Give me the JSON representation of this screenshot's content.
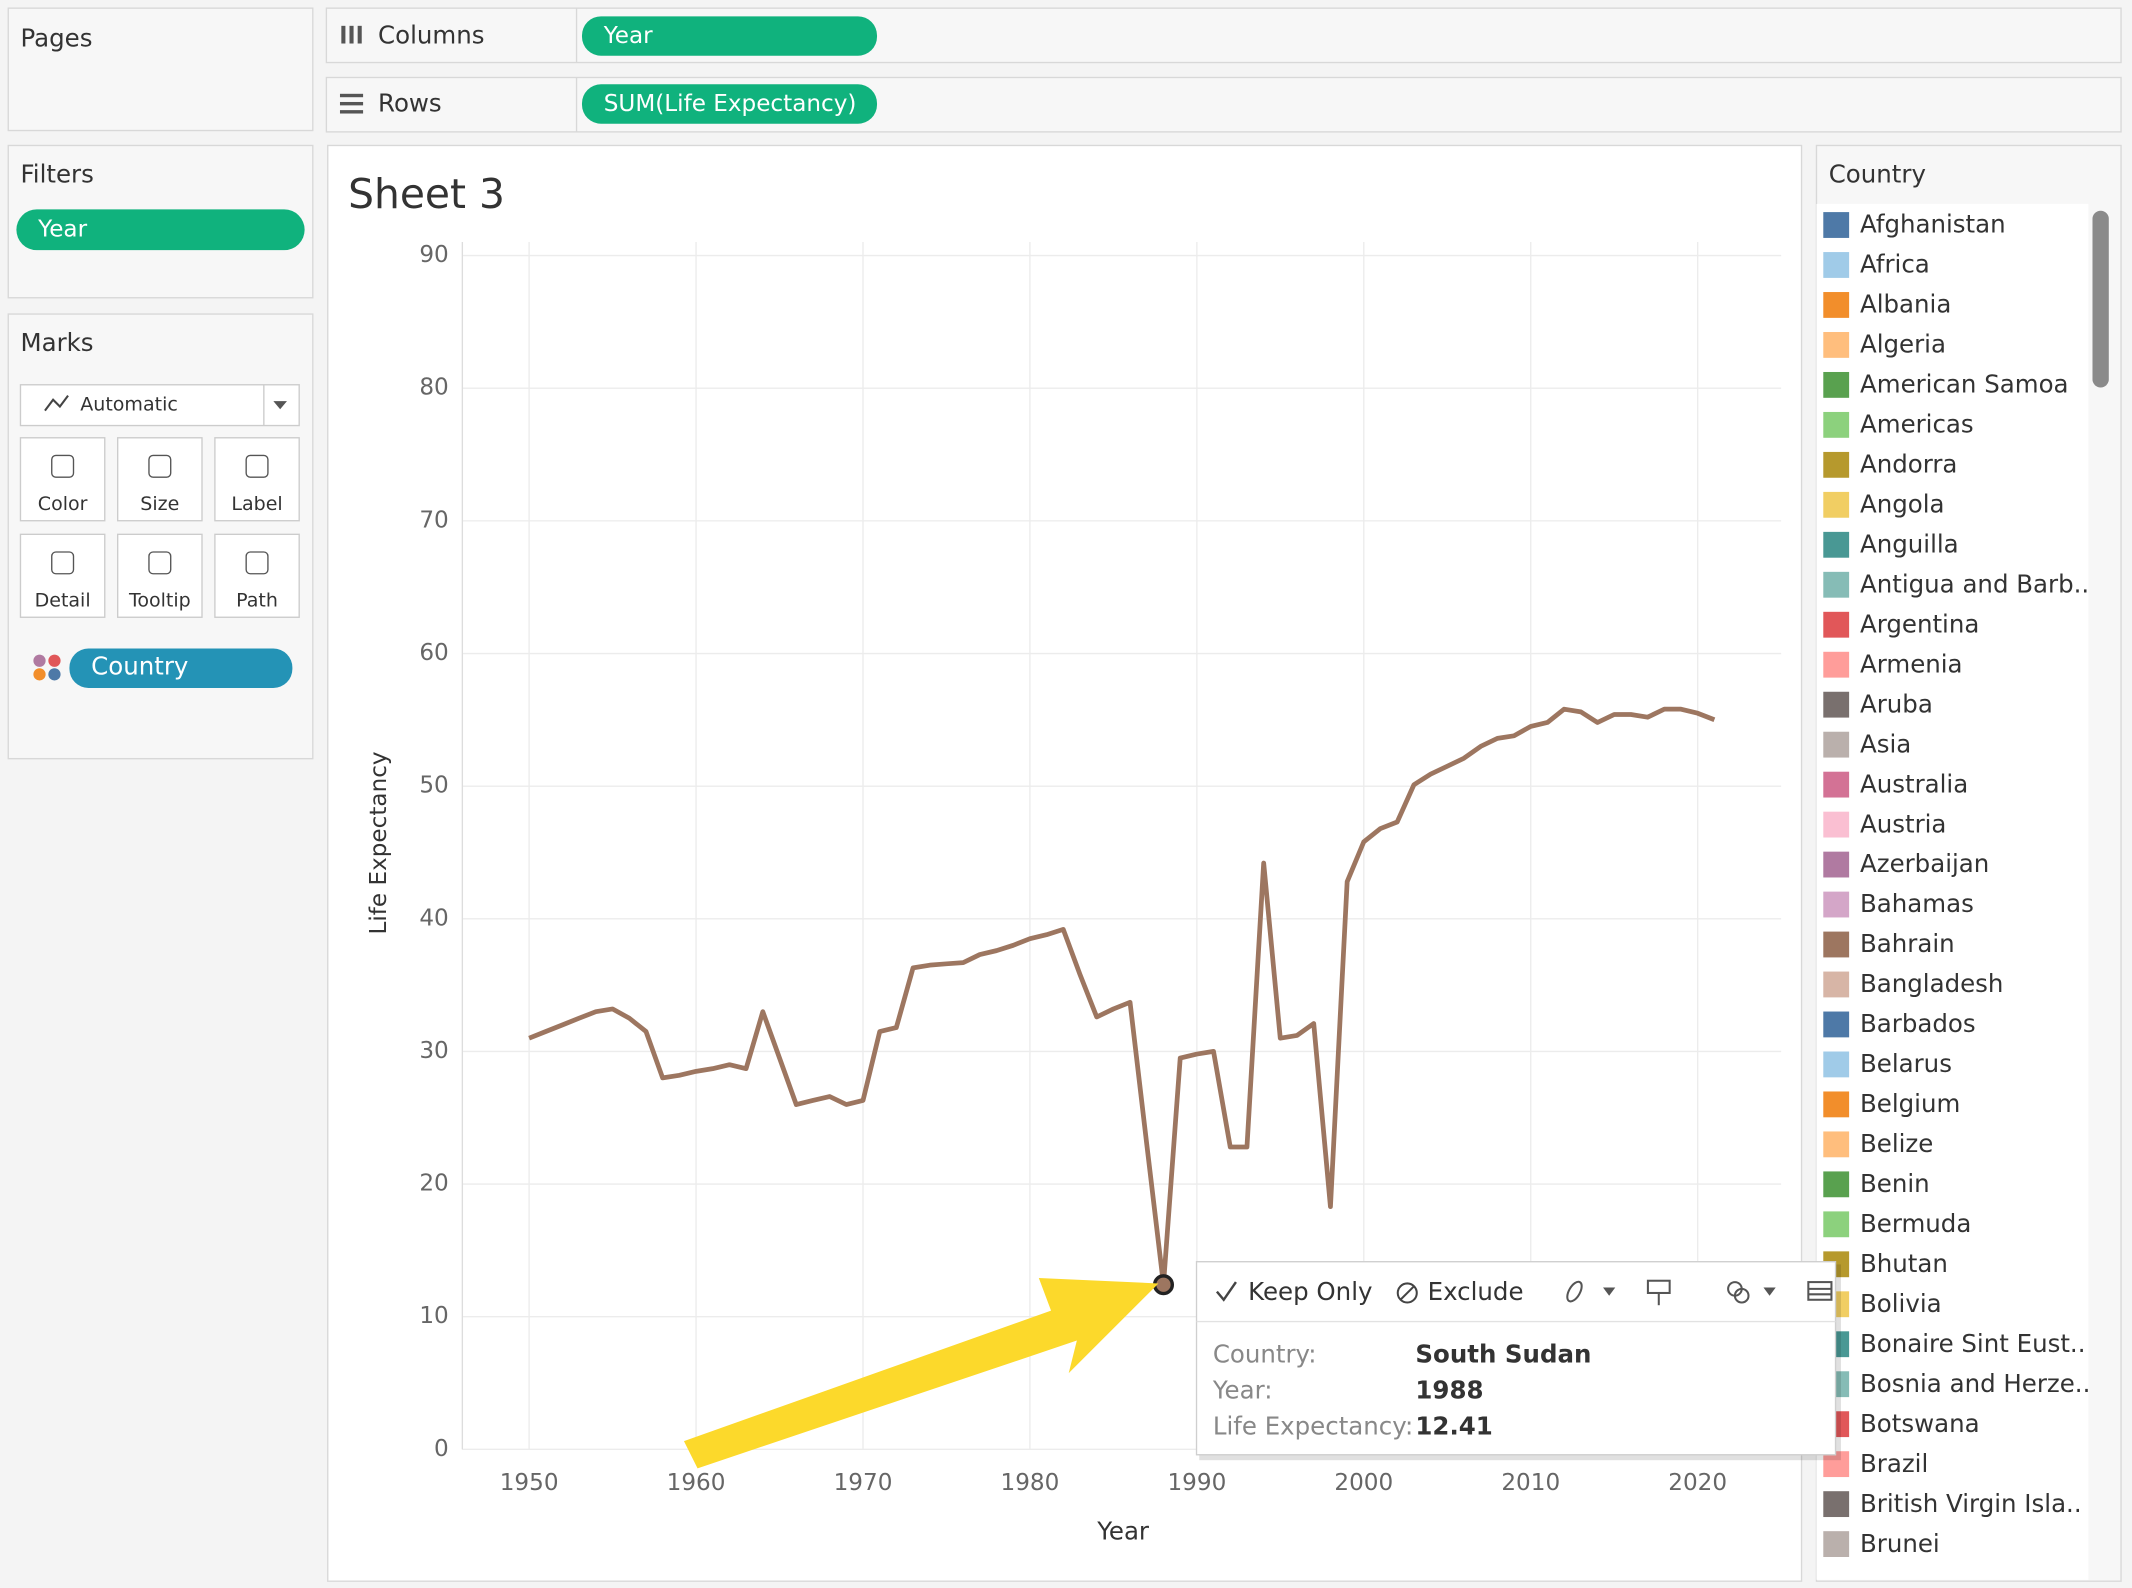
{
  "shelves": {
    "pages": "Pages",
    "columns": "Columns",
    "columns_pill": "Year",
    "rows": "Rows",
    "rows_pill": "SUM(Life Expectancy)",
    "filters": "Filters",
    "filters_pill": "Year"
  },
  "marks": {
    "title": "Marks",
    "mark_type": "Automatic",
    "buttons": [
      "Color",
      "Size",
      "Label",
      "Detail",
      "Tooltip",
      "Path"
    ],
    "color_pill": "Country"
  },
  "chart_data": {
    "type": "line",
    "title": "Sheet 3",
    "x_label": "Year",
    "y_label": "Life Expectancy",
    "xlim": [
      1946,
      2025
    ],
    "xticks": [
      1950,
      1960,
      1970,
      1980,
      1990,
      2000,
      2010,
      2020
    ],
    "ylim": [
      0,
      90
    ],
    "yticks": [
      0,
      10,
      20,
      30,
      40,
      50,
      60,
      70,
      80,
      90
    ],
    "grid": true,
    "x": [
      1950,
      1951,
      1952,
      1953,
      1954,
      1955,
      1956,
      1957,
      1958,
      1959,
      1960,
      1961,
      1962,
      1963,
      1964,
      1965,
      1966,
      1967,
      1968,
      1969,
      1970,
      1971,
      1972,
      1973,
      1974,
      1975,
      1976,
      1977,
      1978,
      1979,
      1980,
      1981,
      1982,
      1983,
      1984,
      1985,
      1986,
      1987,
      1988,
      1989,
      1990,
      1991,
      1992,
      1993,
      1994,
      1995,
      1996,
      1997,
      1998,
      1999,
      2000,
      2001,
      2002,
      2003,
      2004,
      2005,
      2006,
      2007,
      2008,
      2009,
      2010,
      2011,
      2012,
      2013,
      2014,
      2015,
      2016,
      2017,
      2018,
      2019,
      2020,
      2021
    ],
    "series": [
      {
        "name": "South Sudan",
        "color": "#9d7660",
        "values": [
          31,
          31.5,
          32,
          32.5,
          33,
          33.2,
          32.5,
          31.5,
          28,
          28.2,
          28.5,
          28.7,
          29,
          28.7,
          33,
          29.5,
          26,
          26.3,
          26.6,
          26,
          26.3,
          31.5,
          31.8,
          36.3,
          36.5,
          36.6,
          36.7,
          37.3,
          37.6,
          38,
          38.5,
          38.8,
          39.2,
          35.8,
          32.6,
          33.2,
          33.7,
          23,
          12.41,
          29.5,
          29.8,
          30,
          22.8,
          22.8,
          44.2,
          31,
          31.2,
          32.1,
          18.3,
          42.8,
          45.8,
          46.8,
          47.3,
          50.1,
          50.9,
          51.5,
          52.1,
          53,
          53.6,
          53.8,
          54.5,
          54.8,
          55.8,
          55.6,
          54.8,
          55.4,
          55.4,
          55.2,
          55.8,
          55.8,
          55.5,
          55
        ]
      }
    ]
  },
  "legend": {
    "title": "Country",
    "items": [
      {
        "label": "Afghanistan",
        "color": "#4e79a7"
      },
      {
        "label": "Africa",
        "color": "#a0cbe8"
      },
      {
        "label": "Albania",
        "color": "#f28e2b"
      },
      {
        "label": "Algeria",
        "color": "#ffbe7d"
      },
      {
        "label": "American Samoa",
        "color": "#59a14f"
      },
      {
        "label": "Americas",
        "color": "#8cd17d"
      },
      {
        "label": "Andorra",
        "color": "#b6992d"
      },
      {
        "label": "Angola",
        "color": "#f1ce63"
      },
      {
        "label": "Anguilla",
        "color": "#499894"
      },
      {
        "label": "Antigua and Barb..",
        "color": "#86bcb6"
      },
      {
        "label": "Argentina",
        "color": "#e15759"
      },
      {
        "label": "Armenia",
        "color": "#ff9d9a"
      },
      {
        "label": "Aruba",
        "color": "#79706e"
      },
      {
        "label": "Asia",
        "color": "#bab0ac"
      },
      {
        "label": "Australia",
        "color": "#d37295"
      },
      {
        "label": "Austria",
        "color": "#fabfd2"
      },
      {
        "label": "Azerbaijan",
        "color": "#b07aa1"
      },
      {
        "label": "Bahamas",
        "color": "#d4a6c8"
      },
      {
        "label": "Bahrain",
        "color": "#9d7660"
      },
      {
        "label": "Bangladesh",
        "color": "#d7b5a6"
      },
      {
        "label": "Barbados",
        "color": "#4e79a7"
      },
      {
        "label": "Belarus",
        "color": "#a0cbe8"
      },
      {
        "label": "Belgium",
        "color": "#f28e2b"
      },
      {
        "label": "Belize",
        "color": "#ffbe7d"
      },
      {
        "label": "Benin",
        "color": "#59a14f"
      },
      {
        "label": "Bermuda",
        "color": "#8cd17d"
      },
      {
        "label": "Bhutan",
        "color": "#b6992d"
      },
      {
        "label": "Bolivia",
        "color": "#f1ce63"
      },
      {
        "label": "Bonaire Sint Eust..",
        "color": "#499894"
      },
      {
        "label": "Bosnia and Herze..",
        "color": "#86bcb6"
      },
      {
        "label": "Botswana",
        "color": "#e15759"
      },
      {
        "label": "Brazil",
        "color": "#ff9d9a"
      },
      {
        "label": "British Virgin Isla..",
        "color": "#79706e"
      },
      {
        "label": "Brunei",
        "color": "#bab0ac"
      }
    ]
  },
  "tooltip": {
    "actions": [
      "Keep Only",
      "Exclude"
    ],
    "rows": [
      [
        "Country:",
        "South Sudan"
      ],
      [
        "Year:",
        1988
      ],
      [
        "Life Expectancy:",
        12.41
      ]
    ]
  }
}
